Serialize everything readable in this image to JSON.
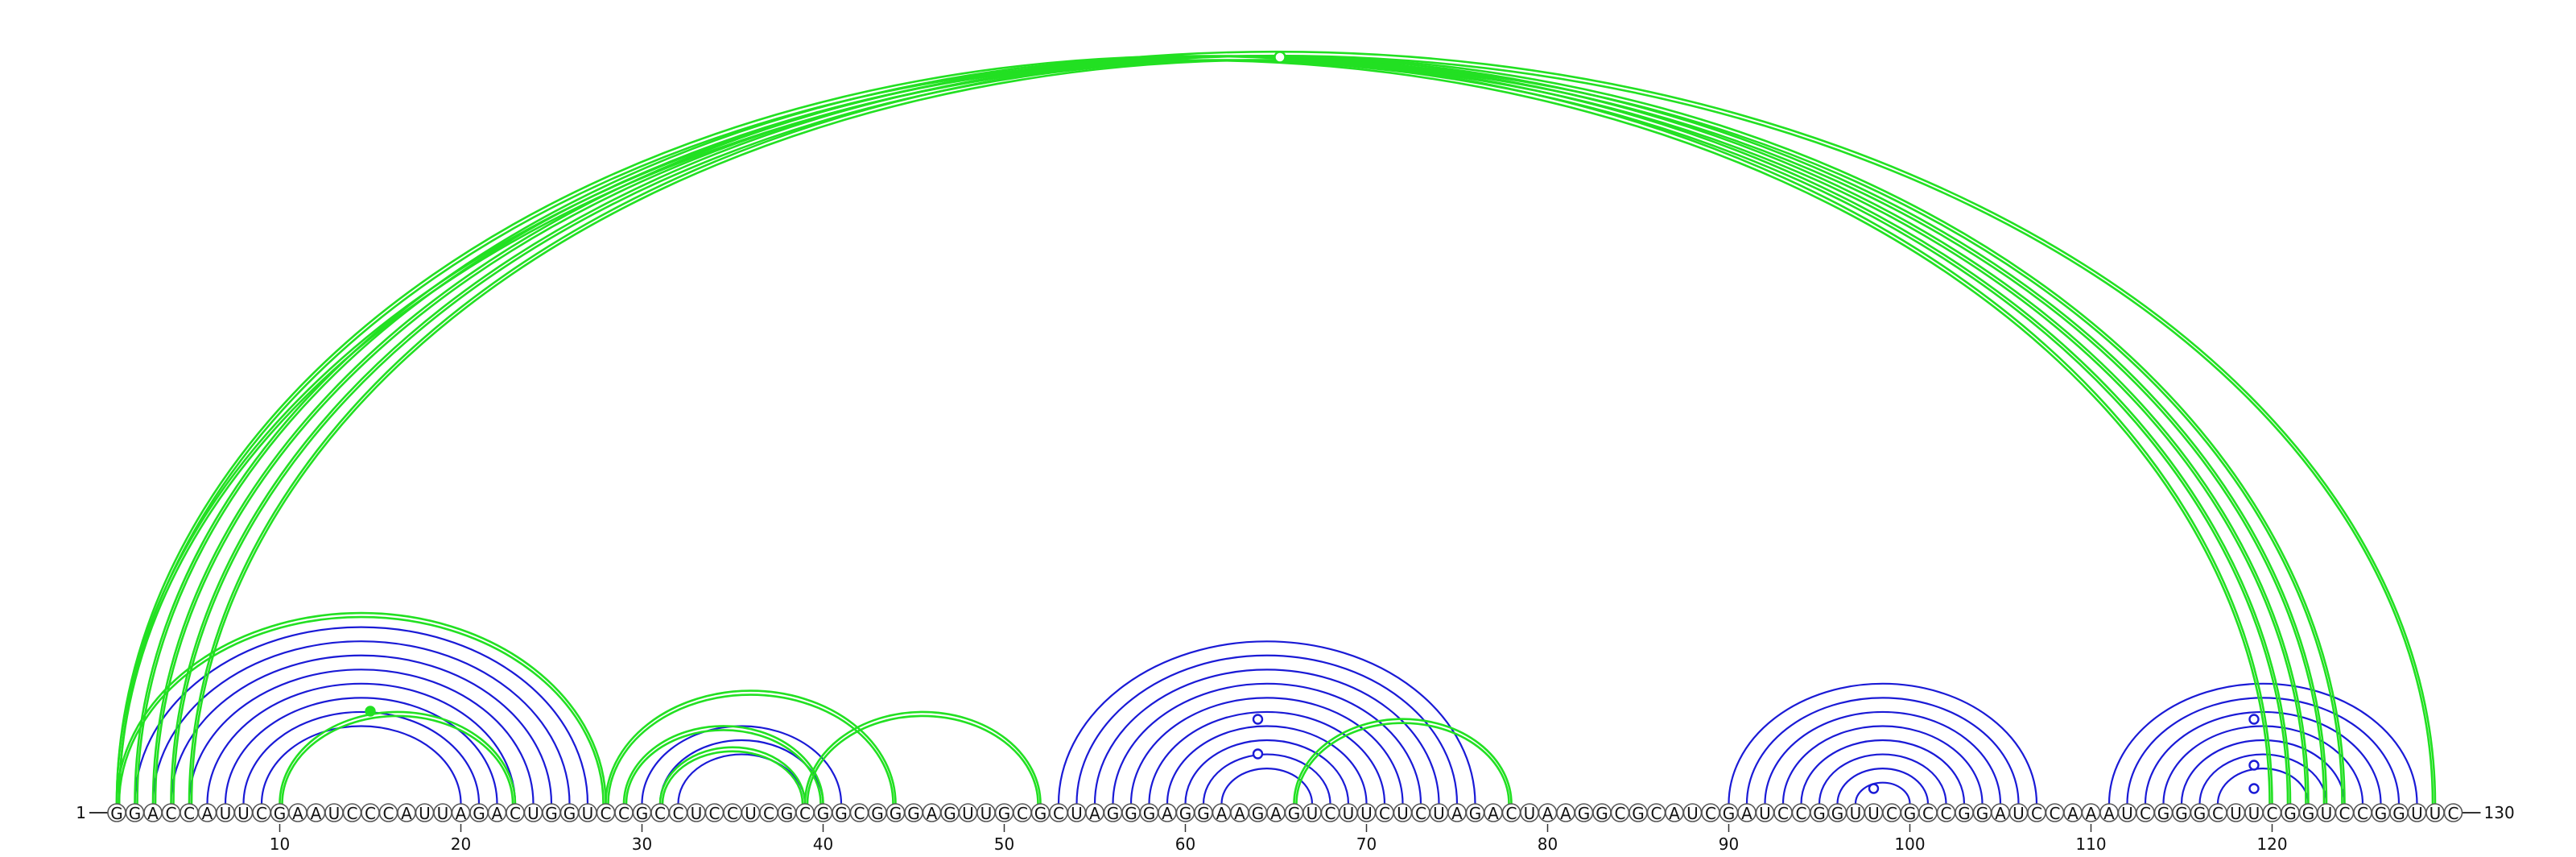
{
  "sequence": "GGACCAUUCGAAUCCCAUUAGACUGGUCCGCCUCCUCGCGGCGGGAGUUGCGCUAGGGAGGAAGAGUCUUCUCUAGACUAAGGCGCAUCGAUCCGGUUCGCCGGAUCCAAAUCGGGCUUCGGUCCGGUUC",
  "start_label": "1",
  "end_label": "130",
  "ticks": [
    10,
    20,
    30,
    40,
    50,
    60,
    70,
    80,
    90,
    100,
    110,
    120
  ],
  "colors": {
    "blue": "#1a1ad6",
    "green": "#22e022"
  },
  "arcs": [
    {
      "i": 2,
      "j": 27,
      "c": "blue"
    },
    {
      "i": 3,
      "j": 26,
      "c": "blue"
    },
    {
      "i": 4,
      "j": 25,
      "c": "blue"
    },
    {
      "i": 5,
      "j": 24,
      "c": "blue"
    },
    {
      "i": 6,
      "j": 23,
      "c": "blue"
    },
    {
      "i": 7,
      "j": 22,
      "c": "blue"
    },
    {
      "i": 8,
      "j": 21,
      "c": "blue"
    },
    {
      "i": 9,
      "j": 20,
      "c": "blue"
    },
    {
      "i": 30,
      "j": 41,
      "c": "blue"
    },
    {
      "i": 31,
      "j": 40,
      "c": "blue"
    },
    {
      "i": 32,
      "j": 39,
      "c": "blue"
    },
    {
      "i": 53,
      "j": 76,
      "c": "blue"
    },
    {
      "i": 54,
      "j": 75,
      "c": "blue"
    },
    {
      "i": 55,
      "j": 74,
      "c": "blue"
    },
    {
      "i": 56,
      "j": 73,
      "c": "blue"
    },
    {
      "i": 57,
      "j": 72,
      "c": "blue"
    },
    {
      "i": 58,
      "j": 71,
      "c": "blue"
    },
    {
      "i": 59,
      "j": 70,
      "c": "blue"
    },
    {
      "i": 60,
      "j": 69,
      "c": "blue"
    },
    {
      "i": 61,
      "j": 68,
      "c": "blue"
    },
    {
      "i": 62,
      "j": 67,
      "c": "blue"
    },
    {
      "i": 90,
      "j": 107,
      "c": "blue"
    },
    {
      "i": 91,
      "j": 106,
      "c": "blue"
    },
    {
      "i": 92,
      "j": 105,
      "c": "blue"
    },
    {
      "i": 93,
      "j": 104,
      "c": "blue"
    },
    {
      "i": 94,
      "j": 103,
      "c": "blue"
    },
    {
      "i": 95,
      "j": 102,
      "c": "blue"
    },
    {
      "i": 96,
      "j": 101,
      "c": "blue"
    },
    {
      "i": 97,
      "j": 100,
      "c": "blue"
    },
    {
      "i": 111,
      "j": 128,
      "c": "blue"
    },
    {
      "i": 112,
      "j": 127,
      "c": "blue"
    },
    {
      "i": 113,
      "j": 126,
      "c": "blue"
    },
    {
      "i": 114,
      "j": 125,
      "c": "blue"
    },
    {
      "i": 115,
      "j": 124,
      "c": "blue"
    },
    {
      "i": 116,
      "j": 123,
      "c": "blue"
    },
    {
      "i": 117,
      "j": 122,
      "c": "blue"
    },
    {
      "i": 1,
      "j": 120,
      "c": "green"
    },
    {
      "i": 2,
      "j": 121,
      "c": "green"
    },
    {
      "i": 3,
      "j": 122,
      "c": "green"
    },
    {
      "i": 4,
      "j": 123,
      "c": "green"
    },
    {
      "i": 5,
      "j": 124,
      "c": "green"
    },
    {
      "i": 1,
      "j": 129,
      "c": "green"
    },
    {
      "i": 1,
      "j": 28,
      "c": "green"
    },
    {
      "i": 10,
      "j": 23,
      "c": "green"
    },
    {
      "i": 28,
      "j": 44,
      "c": "green"
    },
    {
      "i": 29,
      "j": 40,
      "c": "green"
    },
    {
      "i": 31,
      "j": 39,
      "c": "green"
    },
    {
      "i": 39,
      "j": 52,
      "c": "green"
    },
    {
      "i": 66,
      "j": 78,
      "c": "green"
    }
  ],
  "markers": [
    {
      "pos": 65,
      "row": 1,
      "c": "green",
      "filled": false,
      "big": true
    },
    {
      "pos": 15,
      "row": 2,
      "c": "green",
      "filled": true
    },
    {
      "pos": 64,
      "row": 3,
      "c": "blue",
      "filled": false
    },
    {
      "pos": 64,
      "row": 4,
      "c": "blue",
      "filled": false
    },
    {
      "pos": 98,
      "row": 5,
      "c": "blue",
      "filled": false
    },
    {
      "pos": 119,
      "row": 3,
      "c": "blue",
      "filled": false
    },
    {
      "pos": 119,
      "row": 4,
      "c": "blue",
      "filled": false
    },
    {
      "pos": 119,
      "row": 5,
      "c": "blue",
      "filled": false
    }
  ]
}
